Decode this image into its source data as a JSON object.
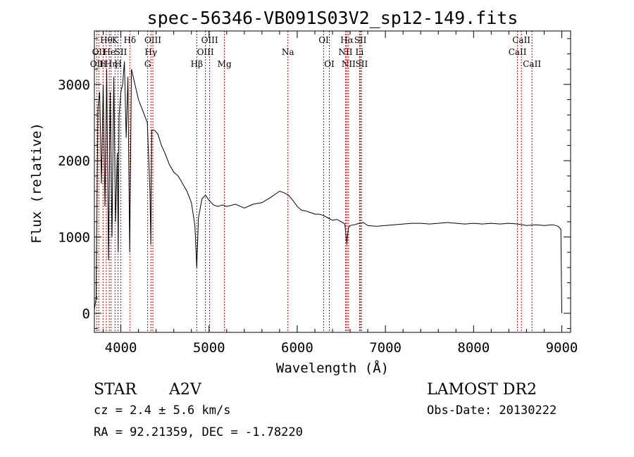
{
  "chart_data": {
    "type": "line",
    "title": "spec-56346-VB091S03V2_sp12-149.fits",
    "xlabel": "Wavelength (Å)",
    "ylabel": "Flux (relative)",
    "xlim": [
      3700,
      9100
    ],
    "ylim": [
      -250,
      3700
    ],
    "xticks": [
      4000,
      5000,
      6000,
      7000,
      8000,
      9000
    ],
    "yticks": [
      0,
      1000,
      2000,
      3000
    ],
    "grid": false,
    "series": [
      {
        "x": [
          3700,
          3720,
          3740,
          3760,
          3780,
          3800,
          3820,
          3840,
          3860,
          3880,
          3900,
          3920,
          3940,
          3960,
          3970,
          3980,
          4000,
          4020,
          4040,
          4060,
          4080,
          4100,
          4120,
          4150,
          4200,
          4250,
          4300,
          4330,
          4340,
          4350,
          4380,
          4420,
          4460,
          4500,
          4550,
          4600,
          4650,
          4700,
          4750,
          4800,
          4840,
          4861,
          4880,
          4920,
          4960,
          5000,
          5050,
          5100,
          5150,
          5200,
          5300,
          5400,
          5500,
          5600,
          5700,
          5750,
          5800,
          5850,
          5900,
          5950,
          6000,
          6050,
          6100,
          6150,
          6200,
          6250,
          6300,
          6350,
          6400,
          6450,
          6500,
          6540,
          6563,
          6580,
          6600,
          6650,
          6700,
          6750,
          6800,
          6900,
          7000,
          7100,
          7200,
          7300,
          7400,
          7500,
          7600,
          7700,
          7800,
          7900,
          8000,
          8100,
          8200,
          8300,
          8400,
          8500,
          8600,
          8700,
          8800,
          8900,
          8960,
          8990,
          9000
        ],
        "y": [
          50,
          200,
          2700,
          2900,
          1700,
          3000,
          1400,
          3200,
          700,
          2900,
          1000,
          3100,
          1200,
          2100,
          800,
          2600,
          2900,
          3000,
          3300,
          2300,
          3100,
          800,
          3200,
          3050,
          2800,
          2650,
          2500,
          1600,
          900,
          2400,
          2400,
          2350,
          2200,
          2100,
          1950,
          1850,
          1800,
          1700,
          1600,
          1450,
          1150,
          600,
          1250,
          1500,
          1550,
          1480,
          1420,
          1400,
          1420,
          1400,
          1430,
          1380,
          1430,
          1450,
          1520,
          1560,
          1600,
          1580,
          1550,
          1480,
          1400,
          1350,
          1340,
          1320,
          1300,
          1300,
          1280,
          1250,
          1220,
          1230,
          1200,
          1170,
          900,
          1120,
          1150,
          1160,
          1180,
          1190,
          1150,
          1140,
          1150,
          1160,
          1170,
          1180,
          1180,
          1170,
          1180,
          1190,
          1180,
          1170,
          1180,
          1170,
          1180,
          1170,
          1180,
          1170,
          1150,
          1160,
          1150,
          1160,
          1140,
          1100,
          0
        ]
      }
    ],
    "line_markers": [
      {
        "wave": 3727,
        "labels": [
          {
            "text": "OII",
            "row": 3
          }
        ]
      },
      {
        "wave": 3750,
        "labels": [
          {
            "text": "OII",
            "row": 2
          }
        ]
      },
      {
        "wave": 3798,
        "labels": [
          {
            "text": "H",
            "row": 3
          }
        ]
      },
      {
        "wave": 3835,
        "labels": [
          {
            "text": "Hθ",
            "row": 1
          }
        ]
      },
      {
        "wave": 3869,
        "labels": [
          {
            "text": "He",
            "row": 2
          }
        ]
      },
      {
        "wave": 3889,
        "labels": [
          {
            "text": "Hη",
            "row": 3
          }
        ]
      },
      {
        "wave": 3934,
        "labels": [
          {
            "text": "K",
            "row": 1
          }
        ]
      },
      {
        "wave": 3968,
        "labels": [
          {
            "text": "H",
            "row": 3
          }
        ]
      },
      {
        "wave": 4000,
        "labels": [
          {
            "text": "SII",
            "row": 2
          }
        ]
      },
      {
        "wave": 4102,
        "labels": [
          {
            "text": "Hδ",
            "row": 1
          }
        ]
      },
      {
        "wave": 4304,
        "labels": [
          {
            "text": "G",
            "row": 3
          }
        ]
      },
      {
        "wave": 4341,
        "labels": [
          {
            "text": "Hγ",
            "row": 2
          }
        ]
      },
      {
        "wave": 4363,
        "labels": [
          {
            "text": "OIII",
            "row": 1
          }
        ]
      },
      {
        "wave": 4861,
        "labels": [
          {
            "text": "Hβ",
            "row": 3
          }
        ]
      },
      {
        "wave": 4959,
        "labels": [
          {
            "text": "OIII",
            "row": 2
          }
        ]
      },
      {
        "wave": 5007,
        "labels": [
          {
            "text": "OIII",
            "row": 1
          }
        ]
      },
      {
        "wave": 5175,
        "labels": [
          {
            "text": "Mg",
            "row": 3
          }
        ]
      },
      {
        "wave": 5894,
        "labels": [
          {
            "text": "Na",
            "row": 2
          }
        ]
      },
      {
        "wave": 6300,
        "labels": [
          {
            "text": "OI",
            "row": 1
          }
        ]
      },
      {
        "wave": 6364,
        "labels": [
          {
            "text": "OI",
            "row": 3
          }
        ]
      },
      {
        "wave": 6548,
        "labels": [
          {
            "text": "NII",
            "row": 2
          }
        ]
      },
      {
        "wave": 6563,
        "labels": [
          {
            "text": "Hα",
            "row": 1
          }
        ]
      },
      {
        "wave": 6583,
        "labels": [
          {
            "text": "NII",
            "row": 3
          }
        ]
      },
      {
        "wave": 6707,
        "labels": [
          {
            "text": "Li",
            "row": 2
          }
        ]
      },
      {
        "wave": 6716,
        "labels": [
          {
            "text": "SII",
            "row": 1
          }
        ]
      },
      {
        "wave": 6731,
        "labels": [
          {
            "text": "SII",
            "row": 3
          }
        ]
      },
      {
        "wave": 8498,
        "labels": [
          {
            "text": "CaII",
            "row": 2
          }
        ]
      },
      {
        "wave": 8542,
        "labels": [
          {
            "text": "CaII",
            "row": 1
          }
        ]
      },
      {
        "wave": 8662,
        "labels": [
          {
            "text": "CaII",
            "row": 3
          }
        ]
      }
    ],
    "marker_color": "#c00000"
  },
  "info": {
    "star_label": "STAR",
    "spectral_type": "A2V",
    "survey": "LAMOST DR2",
    "cz": "cz = 2.4 ± 5.6 km/s",
    "obs_date": "Obs-Date: 20130222",
    "coords": "RA =  92.21359, DEC =  -1.78220"
  }
}
